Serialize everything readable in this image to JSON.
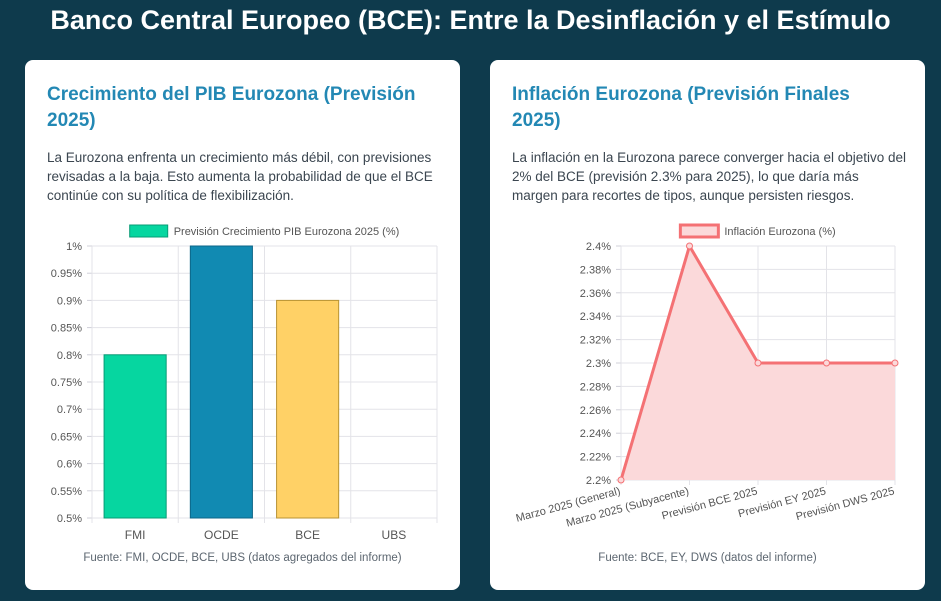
{
  "page": {
    "title": "Banco Central Europeo (BCE): Entre la Desinflación y el Estímulo"
  },
  "cards": {
    "gdp": {
      "title": "Crecimiento del PIB Eurozona (Previsión 2025)",
      "description": "La Eurozona enfrenta un crecimiento más débil, con previsiones revisadas a la baja. Esto aumenta la probabilidad de que el BCE continúe con su política de flexibilización.",
      "source": "Fuente: FMI, OCDE, BCE, UBS (datos agregados del informe)"
    },
    "inflation": {
      "title": "Inflación Eurozona (Previsión Finales 2025)",
      "description": "La inflación en la Eurozona parece converger hacia el objetivo del 2% del BCE (previsión 2.3% para 2025), lo que daría más margen para recortes de tipos, aunque persisten riesgos.",
      "source": "Fuente: BCE, EY, DWS (datos del informe)"
    }
  },
  "chart_data": [
    {
      "type": "bar",
      "categories": [
        "FMI",
        "OCDE",
        "BCE",
        "UBS"
      ],
      "series": [
        {
          "name": "Previsión Crecimiento PIB Eurozona 2025 (%)",
          "values": [
            0.8,
            1.0,
            0.9,
            null
          ]
        }
      ],
      "bar_colors": [
        "#06d6a0",
        "#118ab2",
        "#ffd166",
        "#ef476f"
      ],
      "bar_borders": [
        "#079c76",
        "#0d6688",
        "#b89334",
        "#b03552"
      ],
      "ylim": [
        0.5,
        1.0
      ],
      "yticks": [
        "0.5%",
        "0.55%",
        "0.6%",
        "0.65%",
        "0.7%",
        "0.75%",
        "0.8%",
        "0.85%",
        "0.9%",
        "0.95%",
        "1%"
      ],
      "legend": "top-center",
      "grid": true
    },
    {
      "type": "area",
      "categories": [
        "Marzo 2025 (General)",
        "Marzo 2025 (Subyacente)",
        "Previsión BCE 2025",
        "Previsión EY 2025",
        "Previsión DWS 2025"
      ],
      "series": [
        {
          "name": "Inflación Eurozona (%)",
          "values": [
            2.2,
            2.4,
            2.3,
            2.3,
            2.3
          ]
        }
      ],
      "line_color": "#f47174",
      "fill_color": "#fbd9da",
      "ylim": [
        2.2,
        2.4
      ],
      "yticks": [
        "2.2%",
        "2.22%",
        "2.24%",
        "2.26%",
        "2.28%",
        "2.3%",
        "2.32%",
        "2.34%",
        "2.36%",
        "2.38%",
        "2.4%"
      ],
      "legend": "top-center",
      "grid": true
    }
  ]
}
